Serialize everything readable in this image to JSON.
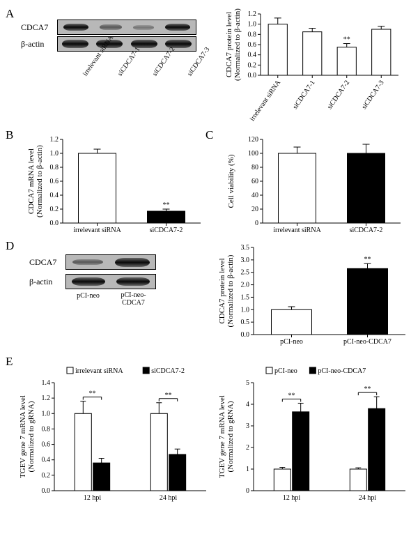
{
  "labels": {
    "A": "A",
    "B": "B",
    "C": "C",
    "D": "D",
    "E": "E"
  },
  "targets": {
    "cdca7": "CDCA7",
    "bactin": "β-actin"
  },
  "panelA": {
    "lanes": [
      "irrelevant siRNA",
      "siCDCA7-1",
      "siCDCA7-2",
      "siCDCA7-3"
    ],
    "bar": {
      "type": "bar",
      "ylabel": "CDCA7 protein level\n(Normalized to β-actin)",
      "ylim": [
        0,
        1.2
      ],
      "ytick_step": 0.2,
      "categories": [
        "irrelevant siRNA",
        "siCDCA7-1",
        "siCDCA7-2",
        "siCDCA7-3"
      ],
      "values": [
        1.0,
        0.85,
        0.55,
        0.9
      ],
      "errors": [
        0.12,
        0.07,
        0.07,
        0.06
      ],
      "colors": [
        "#ffffff",
        "#ffffff",
        "#ffffff",
        "#ffffff"
      ],
      "sig": {
        "index": 2,
        "text": "**"
      },
      "label_fontsize": 11
    }
  },
  "panelB": {
    "type": "bar",
    "ylabel": "CDCA7 mRNA level\n(Normalized to β-actin)",
    "ylim": [
      0,
      1.2
    ],
    "ytick_step": 0.2,
    "categories": [
      "irrelevant siRNA",
      "siCDCA7-2"
    ],
    "values": [
      1.0,
      0.17
    ],
    "errors": [
      0.06,
      0.03
    ],
    "colors": [
      "#ffffff",
      "#000000"
    ],
    "sig": {
      "index": 1,
      "text": "**"
    }
  },
  "panelC": {
    "type": "bar",
    "ylabel": "Cell viability (%)",
    "ylim": [
      0,
      120
    ],
    "ytick_step": 20,
    "categories": [
      "irrelevant siRNA",
      "siCDCA7-2"
    ],
    "values": [
      100,
      100
    ],
    "errors": [
      9,
      13
    ],
    "colors": [
      "#ffffff",
      "#000000"
    ]
  },
  "panelD": {
    "lanes": [
      "pCI-neo",
      "pCI-neo-CDCA7"
    ],
    "bar": {
      "type": "bar",
      "ylabel": "CDCA7 protein level\n(Normalized to β-actin)",
      "ylim": [
        0,
        3.5
      ],
      "ytick_step": 0.5,
      "categories": [
        "pCI-neo",
        "pCI-neo-CDCA7"
      ],
      "values": [
        1.0,
        2.65
      ],
      "errors": [
        0.12,
        0.2
      ],
      "colors": [
        "#ffffff",
        "#000000"
      ],
      "sig": {
        "index": 1,
        "text": "**"
      }
    }
  },
  "panelE": {
    "left": {
      "type": "grouped-bar",
      "ylabel": "TGEV gene 7 mRNA level\n(Normalized to gRNA)",
      "ylim": [
        0,
        1.4
      ],
      "ytick_step": 0.2,
      "groups": [
        "12 hpi",
        "24 hpi"
      ],
      "series": [
        {
          "name": "irrelevant siRNA",
          "color": "#ffffff",
          "values": [
            1.0,
            1.0
          ],
          "errors": [
            0.16,
            0.14
          ]
        },
        {
          "name": "siCDCA7-2",
          "color": "#000000",
          "values": [
            0.36,
            0.47
          ],
          "errors": [
            0.06,
            0.07
          ]
        }
      ],
      "sig": [
        {
          "group": 0,
          "text": "**"
        },
        {
          "group": 1,
          "text": "**"
        }
      ]
    },
    "right": {
      "type": "grouped-bar",
      "ylabel": "TGEV gene 7 mRNA level\n(Normalized to gRNA)",
      "ylim": [
        0,
        5.0
      ],
      "ytick_step": 1.0,
      "groups": [
        "12 hpi",
        "24 hpi"
      ],
      "series": [
        {
          "name": "pCI-neo",
          "color": "#ffffff",
          "values": [
            1.0,
            1.0
          ],
          "errors": [
            0.08,
            0.06
          ]
        },
        {
          "name": "pCI-neo-CDCA7",
          "color": "#000000",
          "values": [
            3.65,
            3.8
          ],
          "errors": [
            0.4,
            0.55
          ]
        }
      ],
      "sig": [
        {
          "group": 0,
          "text": "**"
        },
        {
          "group": 1,
          "text": "**"
        }
      ]
    }
  }
}
